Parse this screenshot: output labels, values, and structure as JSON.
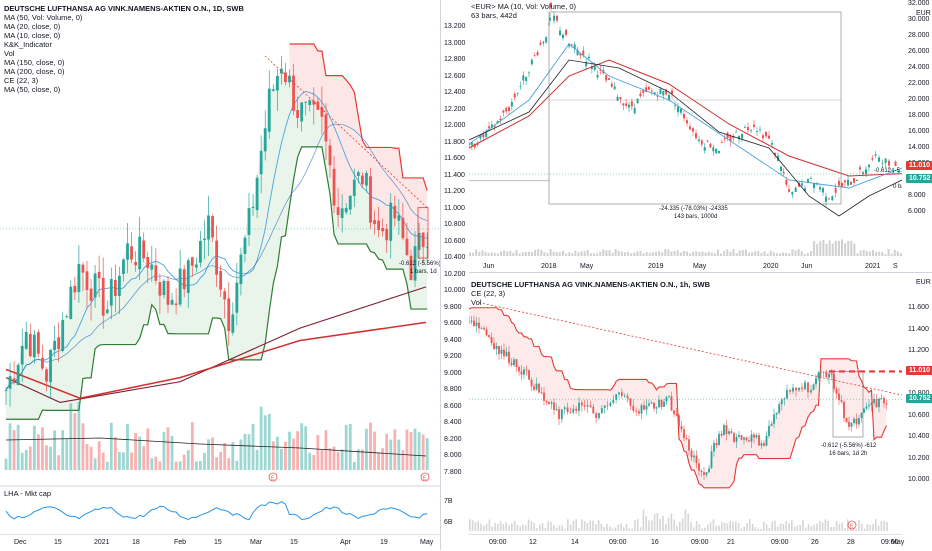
{
  "left_panel": {
    "title": "DEUTSCHE LUFTHANSA AG VINK.NAMENS-AKTIEN O.N., 1D, SWB",
    "indicators": [
      "MA (50, Vol: Volume, 0)",
      "MA (20, close, 0)",
      "MA (10, close, 0)",
      "K&K_Indicator",
      "Vol",
      "MA (150, close, 0)",
      "MA (200, close, 0)",
      "CE (22, 3)",
      "MA (50, close, 0)"
    ],
    "x_labels": [
      "Dec",
      "15",
      "2021",
      "18",
      "Feb",
      "15",
      "Mar",
      "15",
      "Apr",
      "19",
      "May"
    ],
    "annotation_line1": "-0.612 (-5.56%) -6",
    "annotation_line2": "1 bars, 1d",
    "sub_indicator": "LHA - Mkt cap",
    "sub_axis": [
      "7B",
      "6B"
    ],
    "event_label": "E"
  },
  "right_top": {
    "header_line1": "<EUR>  MA (10, Vol: Volume, 0)",
    "header_line2": "63 bars, 442d",
    "unit": "EUR",
    "y_labels": [
      "32.000",
      "30.000",
      "28.000",
      "26.000",
      "24.000",
      "22.000",
      "20.000",
      "18.000",
      "16.000",
      "14.000",
      "12.000",
      "10.000",
      "8.000",
      "6.000"
    ],
    "x_labels": [
      "Jun",
      "2018",
      "May",
      "2019",
      "May",
      "2020",
      "Jun",
      "2021",
      "S"
    ],
    "price_tag_red": "11.010",
    "price_tag_teal": "10.752",
    "annotation_main_line1": "-24.335 (-78.03%) -24335",
    "annotation_main_line2": "143 bars, 1000d",
    "annotation_right": "-0.612 (-5.5",
    "annotation_right2": "0 bars"
  },
  "shared_axis": {
    "y_labels": [
      "13.200",
      "13.000",
      "12.800",
      "12.600",
      "12.400",
      "12.200",
      "12.000",
      "11.800",
      "11.600",
      "11.400",
      "11.200",
      "11.000",
      "10.800",
      "10.600",
      "10.400",
      "10.200",
      "10.000",
      "9.800",
      "9.600",
      "9.400",
      "9.200",
      "9.000",
      "8.800",
      "8.600",
      "8.400",
      "8.200",
      "8.000",
      "7.800"
    ]
  },
  "right_bottom": {
    "title": "DEUTSCHE LUFTHANSA AG VINK.NAMENS-AKTIEN O.N., 1h, SWB",
    "indicators": [
      "CE (22, 3)",
      "Vol"
    ],
    "unit": "EUR",
    "y_labels": [
      "11.600",
      "11.400",
      "11.200",
      "11.000",
      "10.800",
      "10.600",
      "10.400",
      "10.200",
      "10.000"
    ],
    "x_labels": [
      "09:00",
      "12",
      "14",
      "09:00",
      "16",
      "09:00",
      "21",
      "09:00",
      "26",
      "28",
      "09:00",
      "May"
    ],
    "price_tag_red": "11.010",
    "price_tag_teal": "10.752",
    "annotation_line1": "-0.612 (-5.56%) -612",
    "annotation_line2": "16 bars, 1d 2h",
    "event_label": "E"
  },
  "colors": {
    "up": "#26a69a",
    "down": "#ef5350",
    "ma_blue": "#4aa3df",
    "ma_dark": "#7b1e2e",
    "ma_red": "#d32f2f",
    "ce_green": "#2e7d32",
    "ce_red": "#e53935"
  }
}
